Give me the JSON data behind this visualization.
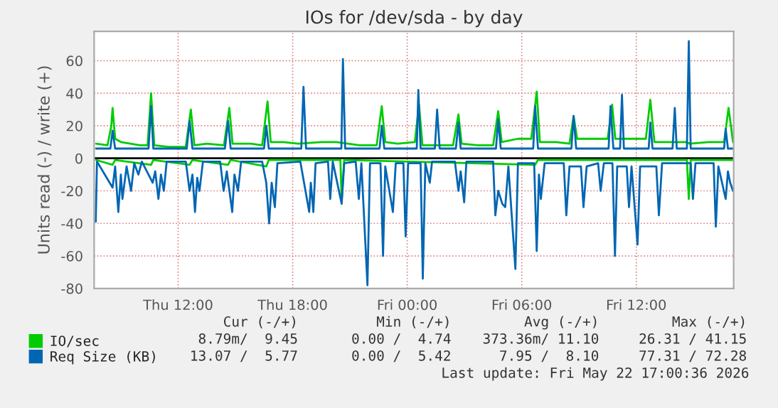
{
  "chart_data": {
    "type": "line",
    "title": "IOs for /dev/sda - by day",
    "ylabel": "Units read (-) / write (+)",
    "xlim": [
      "2026-05-21T07:36",
      "2026-05-22T17:06"
    ],
    "xticks": [
      {
        "value": "2026-05-21T12:00",
        "label": "Thu 12:00"
      },
      {
        "value": "2026-05-21T18:00",
        "label": "Thu 18:00"
      },
      {
        "value": "2026-05-22T00:00",
        "label": "Fri 00:00"
      },
      {
        "value": "2026-05-22T06:00",
        "label": "Fri 06:00"
      },
      {
        "value": "2026-05-22T12:00",
        "label": "Fri 12:00"
      }
    ],
    "ylim": [
      -80,
      78
    ],
    "yticks": [
      -80,
      -60,
      -40,
      -20,
      0,
      20,
      40,
      60
    ],
    "grid": true,
    "legend": "bottom",
    "line_style": "solid",
    "marker": "none",
    "ref_lines": [
      {
        "axis": "y",
        "value": 0,
        "color": "#000000"
      }
    ],
    "series": [
      {
        "name": "IO/sec",
        "color": "#00cc00",
        "x": [
          "2026-05-21T07:42",
          "2026-05-21T08:18",
          "2026-05-21T08:30",
          "2026-05-21T08:34",
          "2026-05-21T08:42",
          "2026-05-21T09:00",
          "2026-05-21T10:00",
          "2026-05-21T10:24",
          "2026-05-21T10:35",
          "2026-05-21T10:45",
          "2026-05-21T11:30",
          "2026-05-21T12:24",
          "2026-05-21T12:40",
          "2026-05-21T12:51",
          "2026-05-21T13:30",
          "2026-05-21T14:24",
          "2026-05-21T14:41",
          "2026-05-21T14:51",
          "2026-05-21T15:48",
          "2026-05-21T16:24",
          "2026-05-21T16:41",
          "2026-05-21T16:51",
          "2026-05-21T17:30",
          "2026-05-21T18:18",
          "2026-05-21T19:30",
          "2026-05-21T20:18",
          "2026-05-21T21:30",
          "2026-05-21T22:24",
          "2026-05-21T22:40",
          "2026-05-21T22:51",
          "2026-05-21T23:30",
          "2026-05-22T00:24",
          "2026-05-22T00:37",
          "2026-05-22T00:48",
          "2026-05-22T01:30",
          "2026-05-22T02:24",
          "2026-05-22T02:41",
          "2026-05-22T02:51",
          "2026-05-22T03:42",
          "2026-05-22T04:30",
          "2026-05-22T04:46",
          "2026-05-22T04:57",
          "2026-05-22T05:48",
          "2026-05-22T06:30",
          "2026-05-22T06:47",
          "2026-05-22T06:57",
          "2026-05-22T07:48",
          "2026-05-22T08:30",
          "2026-05-22T08:43",
          "2026-05-22T08:54",
          "2026-05-22T09:48",
          "2026-05-22T10:30",
          "2026-05-22T10:44",
          "2026-05-22T10:54",
          "2026-05-22T11:48",
          "2026-05-22T12:30",
          "2026-05-22T12:44",
          "2026-05-22T12:57",
          "2026-05-22T13:48",
          "2026-05-22T14:36",
          "2026-05-22T14:48",
          "2026-05-22T15:48",
          "2026-05-22T16:36",
          "2026-05-22T16:50",
          "2026-05-22T17:04"
        ],
        "values": [
          9,
          8,
          20,
          31,
          12,
          10,
          8,
          8,
          40,
          8,
          7,
          7,
          30,
          8,
          9,
          8,
          31,
          9,
          9,
          8,
          35,
          10,
          10,
          9,
          10,
          10,
          8,
          8,
          32,
          10,
          9,
          10,
          33,
          8,
          8,
          8,
          27,
          9,
          8,
          8,
          29,
          10,
          12,
          12,
          41,
          10,
          10,
          9,
          26,
          12,
          12,
          12,
          33,
          12,
          12,
          12,
          36,
          10,
          10,
          10,
          9,
          10,
          10,
          31,
          10
        ]
      },
      {
        "name": "Req Size (KB)",
        "color": "#0066b3",
        "x": [
          "2026-05-21T07:42",
          "2026-05-21T08:27",
          "2026-05-21T08:34",
          "2026-05-21T08:42",
          "2026-05-21T10:27",
          "2026-05-21T10:35",
          "2026-05-21T10:42",
          "2026-05-21T12:27",
          "2026-05-21T12:36",
          "2026-05-21T12:45",
          "2026-05-21T14:27",
          "2026-05-21T14:37",
          "2026-05-21T14:45",
          "2026-05-21T16:30",
          "2026-05-21T16:37",
          "2026-05-21T16:45",
          "2026-05-21T18:27",
          "2026-05-21T18:34",
          "2026-05-21T18:42",
          "2026-05-21T20:33",
          "2026-05-21T20:38",
          "2026-05-21T20:45",
          "2026-05-21T22:33",
          "2026-05-21T22:40",
          "2026-05-21T22:48",
          "2026-05-22T00:30",
          "2026-05-22T00:35",
          "2026-05-22T00:42",
          "2026-05-22T01:27",
          "2026-05-22T01:34",
          "2026-05-22T01:42",
          "2026-05-22T02:33",
          "2026-05-22T02:41",
          "2026-05-22T02:48",
          "2026-05-22T04:39",
          "2026-05-22T04:46",
          "2026-05-22T04:54",
          "2026-05-22T06:36",
          "2026-05-22T06:42",
          "2026-05-22T06:51",
          "2026-05-22T08:36",
          "2026-05-22T08:43",
          "2026-05-22T08:51",
          "2026-05-22T10:33",
          "2026-05-22T10:39",
          "2026-05-22T10:48",
          "2026-05-22T11:09",
          "2026-05-22T11:15",
          "2026-05-22T11:21",
          "2026-05-22T12:39",
          "2026-05-22T12:44",
          "2026-05-22T12:51",
          "2026-05-22T13:54",
          "2026-05-22T14:01",
          "2026-05-22T14:07",
          "2026-05-22T14:39",
          "2026-05-22T14:45",
          "2026-05-22T14:51",
          "2026-05-22T16:36",
          "2026-05-22T16:41",
          "2026-05-22T16:48",
          "2026-05-22T17:04"
        ],
        "values": [
          6,
          6,
          17,
          6,
          6,
          32,
          6,
          6,
          23,
          6,
          6,
          23,
          6,
          6,
          20,
          6,
          6,
          44,
          6,
          6,
          61,
          6,
          6,
          20,
          6,
          6,
          42,
          6,
          6,
          30,
          6,
          6,
          22,
          6,
          6,
          24,
          6,
          6,
          32,
          6,
          6,
          26,
          6,
          6,
          32,
          6,
          6,
          39,
          6,
          6,
          22,
          6,
          6,
          31,
          6,
          6,
          72,
          6,
          6,
          18,
          6,
          6
        ]
      },
      {
        "color": "#00cc00",
        "x": [
          "2026-05-21T07:42",
          "2026-05-21T08:34",
          "2026-05-21T08:42",
          "2026-05-21T10:35",
          "2026-05-21T10:42",
          "2026-05-21T12:36",
          "2026-05-21T12:45",
          "2026-05-21T14:37",
          "2026-05-21T14:45",
          "2026-05-21T16:37",
          "2026-05-21T16:45",
          "2026-05-21T20:30",
          "2026-05-21T20:34",
          "2026-05-21T20:42",
          "2026-05-22T06:42",
          "2026-05-22T06:51",
          "2026-05-22T14:39",
          "2026-05-22T14:45",
          "2026-05-22T14:51",
          "2026-05-22T17:04"
        ],
        "values": [
          -1,
          -4,
          -1,
          -4,
          -1,
          -4,
          -1,
          -4,
          -1,
          -5,
          -1,
          -1,
          -26,
          -1,
          -4,
          -1,
          -1,
          -25,
          -1,
          -1
        ]
      },
      {
        "color": "#0066b3",
        "x": [
          "2026-05-21T07:41",
          "2026-05-21T07:45",
          "2026-05-21T08:34",
          "2026-05-21T08:42",
          "2026-05-21T08:52",
          "2026-05-21T09:00",
          "2026-05-21T09:05",
          "2026-05-21T09:18",
          "2026-05-21T09:32",
          "2026-05-21T09:42",
          "2026-05-21T09:55",
          "2026-05-21T10:06",
          "2026-05-21T10:40",
          "2026-05-21T10:48",
          "2026-05-21T10:58",
          "2026-05-21T11:06",
          "2026-05-21T11:15",
          "2026-05-21T11:24",
          "2026-05-21T12:24",
          "2026-05-21T12:36",
          "2026-05-21T12:45",
          "2026-05-21T12:53",
          "2026-05-21T13:00",
          "2026-05-21T13:07",
          "2026-05-21T13:18",
          "2026-05-21T14:12",
          "2026-05-21T14:23",
          "2026-05-21T14:33",
          "2026-05-21T14:50",
          "2026-05-21T14:57",
          "2026-05-21T15:08",
          "2026-05-21T15:18",
          "2026-05-21T16:24",
          "2026-05-21T16:37",
          "2026-05-21T16:46",
          "2026-05-21T16:54",
          "2026-05-21T17:04",
          "2026-05-21T17:12",
          "2026-05-21T18:24",
          "2026-05-21T18:52",
          "2026-05-21T18:57",
          "2026-05-21T19:05",
          "2026-05-21T19:12",
          "2026-05-21T19:51",
          "2026-05-21T19:58",
          "2026-05-21T20:06",
          "2026-05-21T20:34",
          "2026-05-21T20:42",
          "2026-05-21T21:18",
          "2026-05-21T21:28",
          "2026-05-21T21:36",
          "2026-05-21T21:55",
          "2026-05-21T22:03",
          "2026-05-21T22:36",
          "2026-05-21T22:44",
          "2026-05-21T22:51",
          "2026-05-21T23:15",
          "2026-05-21T23:24",
          "2026-05-21T23:48",
          "2026-05-21T23:55",
          "2026-05-22T00:03",
          "2026-05-22T00:42",
          "2026-05-22T00:49",
          "2026-05-22T00:57",
          "2026-05-22T01:11",
          "2026-05-22T01:18",
          "2026-05-22T02:30",
          "2026-05-22T02:41",
          "2026-05-22T02:48",
          "2026-05-22T02:59",
          "2026-05-22T03:06",
          "2026-05-22T04:30",
          "2026-05-22T04:37",
          "2026-05-22T04:46",
          "2026-05-22T04:59",
          "2026-05-22T05:08",
          "2026-05-22T05:18",
          "2026-05-22T05:40",
          "2026-05-22T05:48",
          "2026-05-22T06:39",
          "2026-05-22T06:47",
          "2026-05-22T06:54",
          "2026-05-22T07:00",
          "2026-05-22T07:12",
          "2026-05-22T08:12",
          "2026-05-22T08:20",
          "2026-05-22T08:30",
          "2026-05-22T09:06",
          "2026-05-22T09:14",
          "2026-05-22T09:24",
          "2026-05-22T10:00",
          "2026-05-22T10:08",
          "2026-05-22T10:18",
          "2026-05-22T10:45",
          "2026-05-22T10:53",
          "2026-05-22T11:00",
          "2026-05-22T11:30",
          "2026-05-22T11:37",
          "2026-05-22T11:45",
          "2026-05-22T12:04",
          "2026-05-22T12:12",
          "2026-05-22T13:03",
          "2026-05-22T13:11",
          "2026-05-22T13:21",
          "2026-05-22T14:51",
          "2026-05-22T14:58",
          "2026-05-22T15:06",
          "2026-05-22T16:03",
          "2026-05-22T16:10",
          "2026-05-22T16:18",
          "2026-05-22T16:41",
          "2026-05-22T16:48",
          "2026-05-22T16:55",
          "2026-05-22T17:04"
        ],
        "values": [
          -39,
          -2,
          -18,
          -5,
          -33,
          -10,
          -25,
          -5,
          -20,
          -3,
          -10,
          -2,
          -15,
          -8,
          -25,
          -10,
          -20,
          -2,
          -2,
          -20,
          -10,
          -33,
          -12,
          -20,
          -2,
          -2,
          -20,
          -8,
          -33,
          -10,
          -20,
          -2,
          -2,
          -15,
          -40,
          -15,
          -30,
          -3,
          -2,
          -33,
          -15,
          -33,
          -3,
          -2,
          -25,
          -2,
          -28,
          -3,
          -2,
          -25,
          -3,
          -78,
          -3,
          -3,
          -60,
          -5,
          -33,
          -3,
          -3,
          -48,
          -3,
          -3,
          -74,
          -3,
          -15,
          -2,
          -2,
          -20,
          -8,
          -27,
          -2,
          -2,
          -35,
          -20,
          -28,
          -30,
          -5,
          -68,
          -3,
          -3,
          -57,
          -10,
          -25,
          -3,
          -3,
          -35,
          -5,
          -5,
          -30,
          -5,
          -3,
          -20,
          -3,
          -3,
          -60,
          -5,
          -5,
          -30,
          -5,
          -53,
          -5,
          -5,
          -35,
          -3,
          -3,
          -25,
          -3,
          -3,
          -42,
          -5,
          -25,
          -8,
          -15,
          -20
        ]
      }
    ],
    "annotations": [
      "Cur (-/+)",
      "Min (-/+)",
      "Avg (-/+)",
      "Max (-/+)",
      "8.79m/  9.45",
      "0.00 /  4.74",
      "373.36m/ 11.10",
      "26.31 / 41.15",
      "13.07 /  5.77",
      "0.00 /  5.42",
      "7.95 /  8.10",
      "77.31 / 72.28",
      "Last update: Fri May 22 17:00:36 2026"
    ]
  }
}
